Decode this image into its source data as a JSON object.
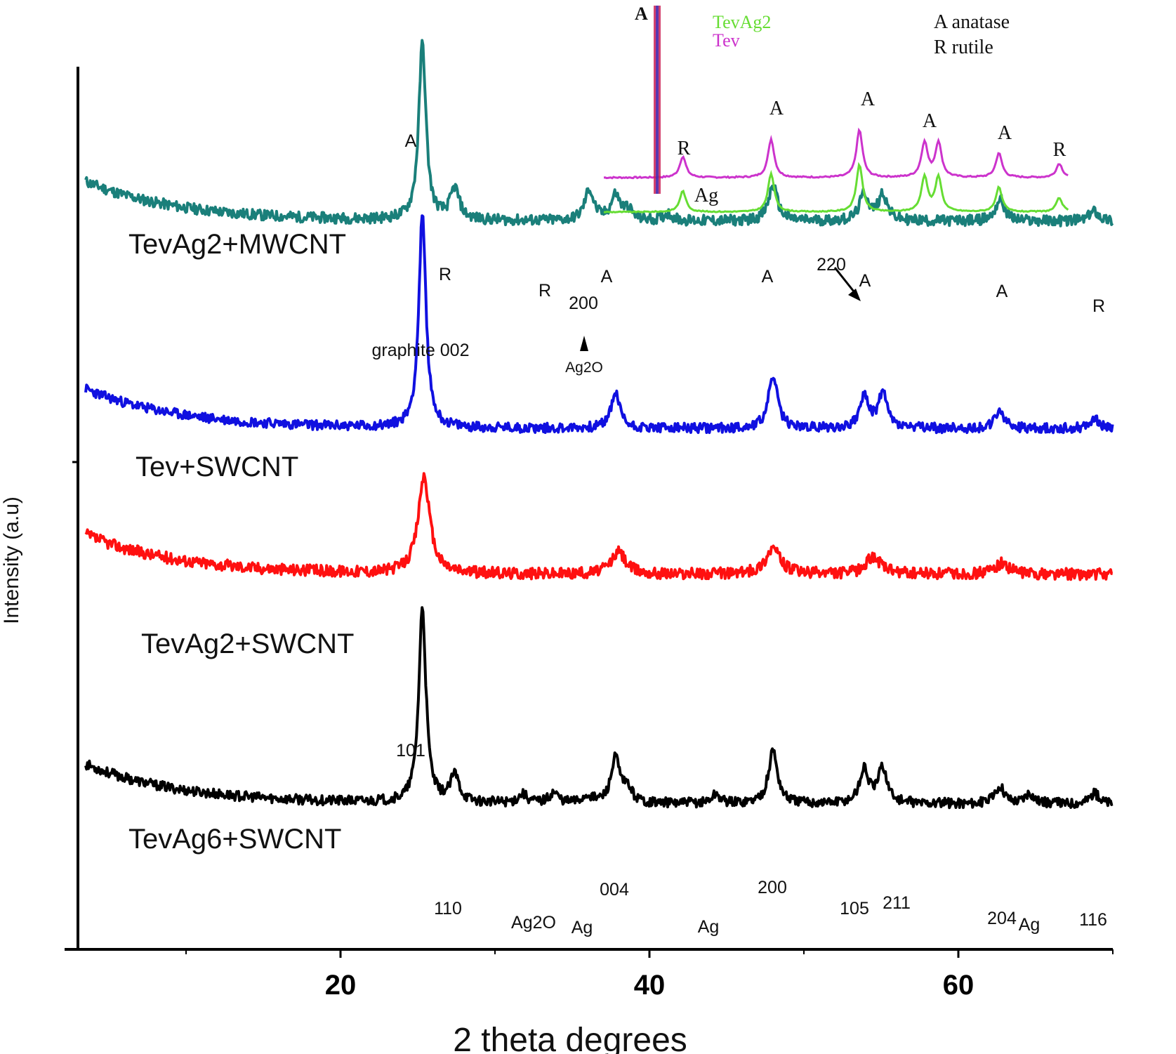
{
  "chart_data": {
    "type": "line",
    "title": "",
    "xlabel": "2 theta degrees",
    "ylabel": "Intensity (a.u)",
    "xlim": [
      3,
      70
    ],
    "xticks": [
      20,
      40,
      60
    ],
    "xtick_labels": [
      "20",
      "40",
      "60"
    ],
    "series": [
      {
        "name": "TevAg2+MWCNT",
        "color": "#1a7f7a",
        "baseline": 0.825,
        "peaks": [
          [
            25.3,
            0.2
          ],
          [
            27.4,
            0.035
          ],
          [
            36.1,
            0.02
          ],
          [
            36.1,
            0.015
          ],
          [
            37.8,
            0.028
          ],
          [
            38.6,
            0.012
          ],
          [
            41.2,
            0.008
          ],
          [
            48.0,
            0.04
          ],
          [
            53.9,
            0.03
          ],
          [
            55.1,
            0.03
          ],
          [
            62.7,
            0.025
          ],
          [
            68.8,
            0.012
          ]
        ]
      },
      {
        "name": "Tev+SWCNT",
        "color": "#1010e0",
        "baseline": 0.59,
        "peaks": [
          [
            25.3,
            0.24
          ],
          [
            37.8,
            0.04
          ],
          [
            48.0,
            0.06
          ],
          [
            53.9,
            0.035
          ],
          [
            55.1,
            0.04
          ],
          [
            62.7,
            0.02
          ],
          [
            68.8,
            0.012
          ]
        ]
      },
      {
        "name": "TevAg2+SWCNT",
        "color": "#ff1010",
        "baseline": 0.425,
        "peaks": [
          [
            25.4,
            0.11
          ],
          [
            38.0,
            0.025
          ],
          [
            48.0,
            0.03
          ],
          [
            54.5,
            0.02
          ],
          [
            62.8,
            0.012
          ]
        ]
      },
      {
        "name": "TevAg6+SWCNT",
        "color": "#000000",
        "baseline": 0.165,
        "peaks": [
          [
            25.3,
            0.22
          ],
          [
            27.4,
            0.03
          ],
          [
            31.8,
            0.01
          ],
          [
            33.8,
            0.012
          ],
          [
            36.0,
            0.008
          ],
          [
            37.8,
            0.05
          ],
          [
            38.6,
            0.015
          ],
          [
            44.3,
            0.01
          ],
          [
            48.0,
            0.06
          ],
          [
            53.9,
            0.038
          ],
          [
            55.1,
            0.04
          ],
          [
            62.7,
            0.02
          ],
          [
            64.6,
            0.012
          ],
          [
            68.8,
            0.012
          ]
        ]
      }
    ],
    "annotations": {
      "mwcnt": [
        "A",
        "R",
        "R",
        "200",
        "A",
        "A",
        "220",
        "A",
        "A",
        "R"
      ],
      "mwcnt_below": [
        "graphite 002",
        "Ag2O"
      ],
      "ag6": [
        "101",
        "110",
        "Ag2O",
        "Ag",
        "004",
        "Ag",
        "200",
        "105",
        "211",
        "204",
        "Ag",
        "116"
      ]
    },
    "inset": {
      "series": [
        {
          "name": "TevAg2",
          "color": "#66dd33"
        },
        {
          "name": "Tev",
          "color": "#cc33cc"
        }
      ],
      "legend": [
        "A  anatase",
        "R   rutile"
      ],
      "peak_labels": [
        "A",
        "R",
        "A",
        "A",
        "A",
        "A",
        "R",
        "Ag"
      ]
    }
  }
}
